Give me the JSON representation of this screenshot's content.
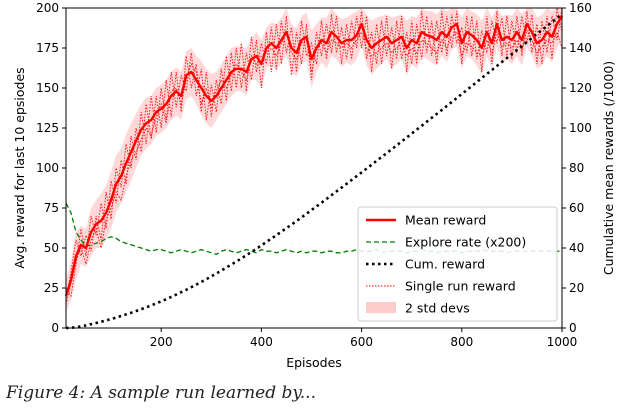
{
  "caption_fragment": "Figure 4: A sample run learned by...",
  "chart_data": {
    "type": "line",
    "xlabel": "Episodes",
    "ylabel": "Avg. reward for last 10 epsiodes",
    "y2label": "Cumulative mean rewards (/1000)",
    "xlim": [
      10,
      1000
    ],
    "ylim": [
      0,
      200
    ],
    "y2lim": [
      0,
      160
    ],
    "xticks": [
      200,
      400,
      600,
      800,
      1000
    ],
    "yticks": [
      0,
      25,
      50,
      75,
      100,
      125,
      150,
      175,
      200
    ],
    "y2ticks": [
      0,
      20,
      40,
      60,
      80,
      100,
      120,
      140,
      160
    ],
    "grid": false,
    "legend_position": "lower-right",
    "legend": [
      {
        "label": "Mean reward",
        "style": "solid-thick",
        "color": "#ff0000"
      },
      {
        "label": "Explore rate (x200)",
        "style": "dashed",
        "color": "#008000"
      },
      {
        "label": "Cum. reward",
        "style": "dotted-thick",
        "color": "#000000"
      },
      {
        "label": "Single run reward",
        "style": "dotted",
        "color": "#ff0000"
      },
      {
        "label": "2 std devs",
        "style": "band",
        "color": "#ffcccc"
      }
    ],
    "x": [
      10,
      20,
      30,
      40,
      50,
      60,
      70,
      80,
      90,
      100,
      110,
      120,
      130,
      140,
      150,
      160,
      170,
      180,
      190,
      200,
      210,
      220,
      230,
      240,
      250,
      260,
      270,
      280,
      290,
      300,
      310,
      320,
      330,
      340,
      350,
      360,
      370,
      380,
      390,
      400,
      410,
      420,
      430,
      440,
      450,
      460,
      470,
      480,
      490,
      500,
      510,
      520,
      530,
      540,
      550,
      560,
      570,
      580,
      590,
      600,
      610,
      620,
      630,
      640,
      650,
      660,
      670,
      680,
      690,
      700,
      710,
      720,
      730,
      740,
      750,
      760,
      770,
      780,
      790,
      800,
      810,
      820,
      830,
      840,
      850,
      860,
      870,
      880,
      890,
      900,
      910,
      920,
      930,
      940,
      950,
      960,
      970,
      980,
      990,
      1000
    ],
    "series": [
      {
        "name": "Mean reward",
        "axis": "left",
        "values": [
          20,
          30,
          45,
          52,
          50,
          60,
          65,
          67,
          72,
          80,
          90,
          95,
          103,
          110,
          117,
          124,
          128,
          130,
          135,
          137,
          140,
          145,
          148,
          145,
          158,
          160,
          155,
          150,
          145,
          142,
          145,
          150,
          155,
          160,
          162,
          162,
          160,
          168,
          170,
          165,
          175,
          178,
          175,
          180,
          185,
          175,
          172,
          180,
          182,
          168,
          175,
          180,
          178,
          185,
          182,
          178,
          180,
          180,
          183,
          190,
          180,
          175,
          178,
          180,
          182,
          178,
          180,
          182,
          175,
          180,
          178,
          185,
          183,
          182,
          180,
          185,
          182,
          188,
          190,
          178,
          185,
          183,
          180,
          175,
          185,
          178,
          190,
          180,
          182,
          180,
          185,
          180,
          190,
          185,
          178,
          180,
          185,
          182,
          190,
          195
        ]
      },
      {
        "name": "Explore rate (x200)",
        "axis": "left",
        "values": [
          78,
          72,
          60,
          55,
          51,
          52,
          53,
          54,
          56,
          57,
          56,
          54,
          53,
          52,
          51,
          50,
          49,
          48,
          49,
          49,
          48,
          47,
          48,
          49,
          48,
          47,
          48,
          49,
          48,
          47,
          46,
          48,
          49,
          48,
          47,
          48,
          49,
          48,
          47,
          49,
          48,
          48,
          47,
          48,
          49,
          48,
          47,
          48,
          47,
          48,
          48,
          47,
          48,
          48,
          47,
          47,
          48,
          48,
          49,
          48,
          48,
          48,
          49,
          47,
          48,
          48,
          48,
          48,
          47,
          48,
          48,
          49,
          48,
          48,
          47,
          48,
          48,
          48,
          48,
          47,
          48,
          48,
          48,
          49,
          48,
          48,
          48,
          48,
          47,
          48,
          48,
          48,
          48,
          48,
          48,
          48,
          48,
          48,
          48,
          48
        ]
      },
      {
        "name": "Cum. reward",
        "axis": "right",
        "values": [
          0.0,
          0.1,
          0.4,
          0.8,
          1.3,
          1.9,
          2.5,
          3.1,
          3.8,
          4.5,
          5.2,
          6.0,
          6.8,
          7.6,
          8.5,
          9.4,
          10.3,
          11.3,
          12.3,
          13.3,
          14.4,
          15.5,
          16.7,
          17.9,
          19.1,
          20.4,
          21.7,
          23.0,
          24.4,
          25.8,
          27.2,
          28.7,
          30.2,
          31.7,
          33.2,
          34.8,
          36.4,
          38.0,
          39.6,
          41.3,
          43.0,
          44.7,
          46.4,
          48.2,
          49.9,
          51.7,
          53.5,
          55.3,
          57.1,
          59.0,
          60.8,
          62.6,
          64.5,
          66.4,
          68.3,
          70.2,
          72.1,
          74.0,
          75.9,
          77.8,
          79.7,
          81.6,
          83.6,
          85.5,
          87.4,
          89.4,
          91.3,
          93.3,
          95.2,
          97.2,
          99.2,
          101.1,
          103.1,
          105.1,
          107.0,
          109.0,
          111.0,
          113.0,
          115.0,
          117.0,
          119.0,
          121.0,
          123.0,
          125.0,
          127.0,
          129.0,
          131.0,
          133.0,
          135.0,
          137.0,
          139.0,
          141.0,
          143.0,
          145.0,
          147.0,
          149.0,
          151.0,
          153.0,
          155.0,
          157.0
        ]
      },
      {
        "name": "Single run reward",
        "axis": "left",
        "runs": [
          [
            18,
            35,
            55,
            45,
            58,
            48,
            70,
            55,
            85,
            68,
            100,
            88,
            115,
            100,
            125,
            110,
            140,
            118,
            145,
            125,
            155,
            132,
            160,
            135,
            170,
            150,
            165,
            135,
            160,
            132,
            155,
            140,
            170,
            148,
            175,
            150,
            172,
            155,
            180,
            150,
            185,
            160,
            190,
            165,
            195,
            158,
            185,
            165,
            190,
            155,
            185,
            170,
            190,
            172,
            195,
            165,
            190,
            168,
            195,
            175,
            195,
            160,
            190,
            165,
            195,
            162,
            192,
            168,
            185,
            165,
            190,
            168,
            195,
            170,
            192,
            172,
            195,
            175,
            198,
            165,
            195,
            170,
            192,
            160,
            195,
            165,
            198,
            170,
            195,
            168,
            195,
            170,
            198,
            172,
            190,
            165,
            195,
            168,
            200,
            185
          ],
          [
            25,
            20,
            40,
            62,
            45,
            70,
            58,
            78,
            62,
            92,
            78,
            105,
            90,
            120,
            105,
            135,
            115,
            145,
            122,
            150,
            130,
            160,
            138,
            158,
            148,
            172,
            145,
            162,
            130,
            152,
            135,
            162,
            142,
            172,
            150,
            178,
            148,
            182,
            160,
            178,
            165,
            188,
            162,
            192,
            172,
            188,
            160,
            192,
            170,
            178,
            165,
            192,
            168,
            196,
            172,
            188,
            168,
            192,
            175,
            198,
            168,
            185,
            165,
            192,
            170,
            188,
            168,
            195,
            160,
            192,
            165,
            198,
            172,
            192,
            165,
            198,
            170,
            196,
            178,
            188,
            172,
            195,
            168,
            186,
            172,
            192,
            178,
            194,
            170,
            192,
            172,
            195,
            178,
            196,
            165,
            192,
            172,
            195,
            180,
            200
          ],
          [
            15,
            28,
            42,
            50,
            40,
            55,
            62,
            50,
            68,
            75,
            85,
            80,
            95,
            105,
            110,
            118,
            125,
            120,
            132,
            140,
            128,
            148,
            150,
            140,
            155,
            165,
            160,
            140,
            150,
            138,
            148,
            155,
            150,
            158,
            165,
            160,
            155,
            170,
            165,
            170,
            172,
            175,
            170,
            178,
            185,
            172,
            168,
            178,
            180,
            160,
            175,
            178,
            172,
            180,
            178,
            175,
            178,
            175,
            180,
            185,
            175,
            170,
            172,
            175,
            178,
            172,
            175,
            178,
            170,
            175,
            172,
            180,
            178,
            175,
            172,
            180,
            175,
            182,
            185,
            170,
            178,
            176,
            172,
            170,
            180,
            172,
            185,
            176,
            178,
            175,
            180,
            174,
            186,
            180,
            172,
            176,
            180,
            178,
            185,
            175
          ]
        ]
      },
      {
        "name": "2 std devs",
        "axis": "left",
        "lower": [
          10,
          18,
          30,
          40,
          38,
          45,
          50,
          50,
          55,
          62,
          72,
          78,
          85,
          92,
          100,
          108,
          112,
          115,
          120,
          122,
          125,
          130,
          133,
          130,
          143,
          145,
          140,
          133,
          128,
          125,
          130,
          135,
          140,
          145,
          148,
          148,
          145,
          155,
          155,
          150,
          162,
          165,
          160,
          166,
          170,
          160,
          157,
          165,
          167,
          150,
          160,
          166,
          162,
          170,
          168,
          163,
          166,
          164,
          168,
          176,
          164,
          158,
          162,
          165,
          168,
          162,
          165,
          168,
          158,
          165,
          162,
          170,
          168,
          166,
          164,
          170,
          166,
          174,
          176,
          162,
          170,
          168,
          164,
          158,
          170,
          162,
          176,
          165,
          168,
          165,
          170,
          164,
          176,
          170,
          162,
          164,
          170,
          166,
          175,
          180
        ],
        "upper": [
          30,
          42,
          60,
          64,
          62,
          75,
          80,
          84,
          89,
          98,
          108,
          112,
          121,
          128,
          134,
          140,
          144,
          145,
          150,
          152,
          155,
          160,
          163,
          160,
          173,
          175,
          170,
          167,
          162,
          159,
          160,
          165,
          170,
          175,
          176,
          176,
          175,
          181,
          185,
          180,
          188,
          191,
          190,
          194,
          200,
          190,
          187,
          195,
          197,
          186,
          190,
          194,
          194,
          200,
          196,
          193,
          194,
          196,
          198,
          200,
          196,
          192,
          194,
          195,
          196,
          194,
          195,
          196,
          192,
          195,
          194,
          200,
          198,
          198,
          196,
          200,
          198,
          200,
          200,
          194,
          200,
          198,
          196,
          192,
          200,
          194,
          200,
          195,
          196,
          195,
          200,
          196,
          200,
          200,
          194,
          196,
          200,
          198,
          200,
          200
        ]
      }
    ]
  }
}
